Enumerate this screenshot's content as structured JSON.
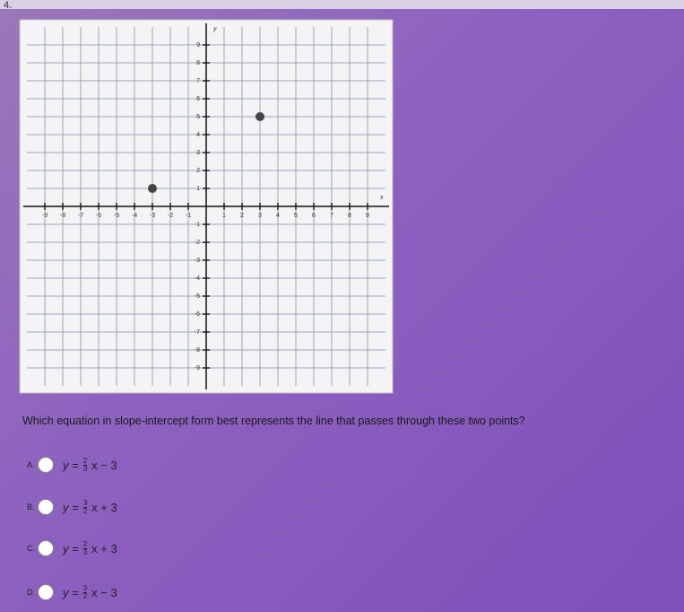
{
  "question_number": "4.",
  "graph": {
    "xlim": [
      -10,
      10
    ],
    "ylim": [
      -10,
      10
    ],
    "xticks": [
      -9,
      -8,
      -7,
      -6,
      -5,
      -4,
      -3,
      -2,
      -1,
      1,
      2,
      3,
      4,
      5,
      6,
      7,
      8,
      9
    ],
    "yticks": [
      -9,
      -8,
      -7,
      -6,
      -5,
      -4,
      -3,
      -2,
      -1,
      1,
      2,
      3,
      4,
      5,
      6,
      7,
      8,
      9
    ],
    "x_axis_label": "x",
    "y_axis_label": "y",
    "points": [
      {
        "x": -3,
        "y": 1
      },
      {
        "x": 3,
        "y": 5
      }
    ]
  },
  "question": "Which equation in slope-intercept form best represents the line that passes through these two points?",
  "options": [
    {
      "letter": "A.",
      "lhs": "y =",
      "num": "2",
      "den": "3",
      "rhs": "x − 3"
    },
    {
      "letter": "B.",
      "lhs": "y =",
      "num": "3",
      "den": "2",
      "rhs": "x + 3"
    },
    {
      "letter": "C.",
      "lhs": "y =",
      "num": "2",
      "den": "3",
      "rhs": "x + 3"
    },
    {
      "letter": "D.",
      "lhs": "y =",
      "num": "3",
      "den": "2",
      "rhs": "x − 3"
    }
  ]
}
